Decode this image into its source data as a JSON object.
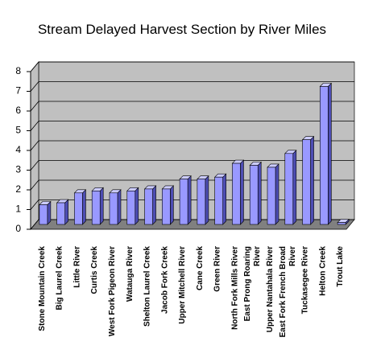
{
  "chart_data": {
    "type": "bar3d",
    "title": "Stream Delayed Harvest Section by River Miles",
    "categories": [
      "Stone Mountain Creek",
      "Big Laurel Creek",
      "Little River",
      "Curtis Creek",
      "West Fork Pigeon River",
      "Watauga River",
      "Shelton Laurel Creek",
      "Jacob Fork Creek",
      "Upper Mitchell River",
      "Cane Creek",
      "Green River",
      "North Fork Mills River",
      "East Prong Roaring River",
      "Upper Nantahala River",
      "East Fork French Broad River",
      "Tuckasegee River",
      "Helton Creek",
      "Trout Lake"
    ],
    "values": [
      1.0,
      1.1,
      1.6,
      1.7,
      1.6,
      1.7,
      1.8,
      1.8,
      2.3,
      2.3,
      2.4,
      3.1,
      3.0,
      2.9,
      3.6,
      4.3,
      7.0,
      0.1
    ],
    "color": "#9999ff",
    "ylim": [
      0,
      8
    ],
    "yticks": [
      0,
      1,
      2,
      3,
      4,
      5,
      6,
      7,
      8
    ],
    "grid": true
  }
}
